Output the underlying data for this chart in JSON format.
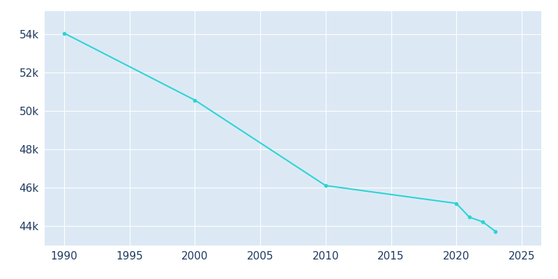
{
  "years": [
    1990,
    2000,
    2010,
    2020,
    2021,
    2022,
    2023
  ],
  "population": [
    54052,
    50567,
    46121,
    45193,
    44476,
    44239,
    43734
  ],
  "line_color": "#2dd4d4",
  "marker": "o",
  "marker_size": 3,
  "line_width": 1.5,
  "figure_background": "#ffffff",
  "plot_background": "#dce9f5",
  "grid_color": "#ffffff",
  "tick_color": "#1e3a5f",
  "tick_fontsize": 11,
  "xlim": [
    1988.5,
    2026.5
  ],
  "ylim": [
    43000,
    55200
  ],
  "xticks": [
    1990,
    1995,
    2000,
    2005,
    2010,
    2015,
    2020,
    2025
  ],
  "yticks": [
    44000,
    46000,
    48000,
    50000,
    52000,
    54000
  ]
}
